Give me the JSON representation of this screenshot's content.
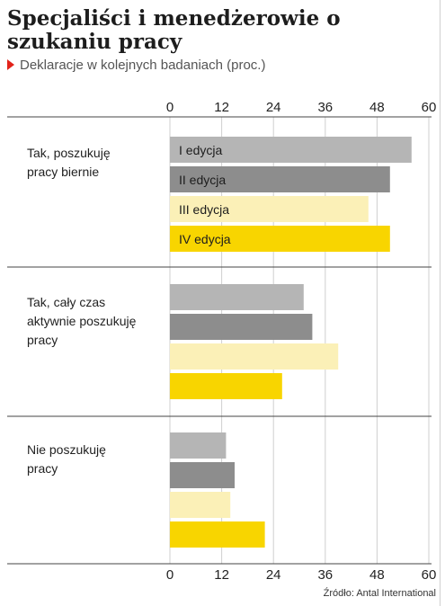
{
  "header": {
    "title": "Specjaliści i menedżerowie o szukaniu pracy",
    "subtitle": "Deklaracje w kolejnych badaniach (proc.)"
  },
  "footer": {
    "source": "Źródło: Antal International"
  },
  "colors": {
    "accent": "#e2231a",
    "series": [
      "#b5b5b5",
      "#8d8d8d",
      "#fbf0b7",
      "#f8d500"
    ]
  },
  "chart_data": {
    "type": "bar",
    "orientation": "horizontal",
    "categories": [
      "Tak, poszukuję pracy biernie",
      "Tak, cały czas aktywnie poszukuję pracy",
      "Nie poszukuję pracy"
    ],
    "category_lines": [
      [
        "Tak, poszukuję",
        "pracy biernie"
      ],
      [
        "Tak, cały czas",
        "aktywnie poszukuję",
        "pracy"
      ],
      [
        "Nie poszukuję",
        "pracy"
      ]
    ],
    "series": [
      {
        "name": "I edycja",
        "values": [
          56,
          31,
          13
        ]
      },
      {
        "name": "II edycja",
        "values": [
          51,
          33,
          15
        ]
      },
      {
        "name": "III edycja",
        "values": [
          46,
          39,
          14
        ]
      },
      {
        "name": "IV edycja",
        "values": [
          51,
          26,
          22
        ]
      }
    ],
    "xlim": [
      0,
      60
    ],
    "xticks": [
      0,
      12,
      24,
      36,
      48,
      60
    ],
    "grid": true,
    "series_labels_in_first_group": true
  }
}
